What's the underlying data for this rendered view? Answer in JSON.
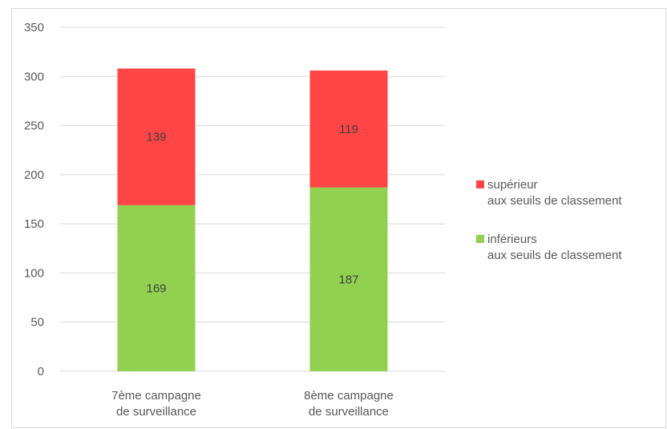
{
  "chart_data": {
    "type": "stacked_bar",
    "categories": [
      "7ème campagne\nde surveillance",
      "8ème campagne\nde surveillance"
    ],
    "series": [
      {
        "name": "inférieurs\naux seuils de classement",
        "color": "#92d050",
        "values": [
          169,
          187
        ]
      },
      {
        "name": "supérieur\naux seuils de classement",
        "color": "#ff4545",
        "values": [
          139,
          119
        ]
      }
    ],
    "ylim": [
      0,
      350
    ],
    "yticks": [
      0,
      50,
      100,
      150,
      200,
      250,
      300,
      350
    ],
    "grid": true,
    "legend": "right"
  }
}
